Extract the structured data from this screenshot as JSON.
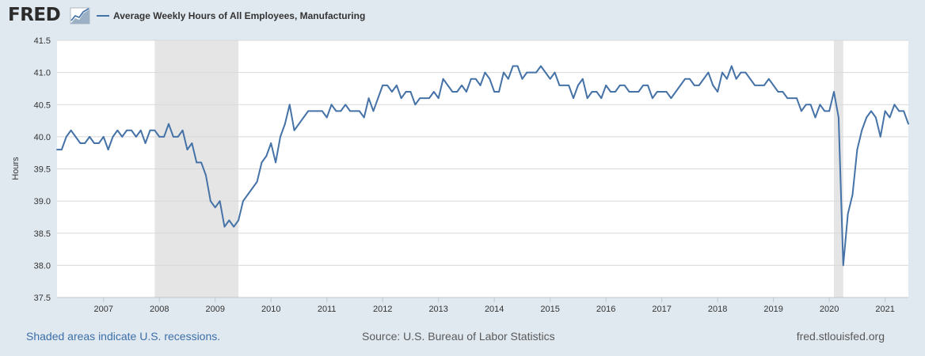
{
  "header": {
    "logo_text": "FRED",
    "logo_icon": "line-chart-icon",
    "legend_label": "Average Weekly Hours of All Employees, Manufacturing"
  },
  "footer": {
    "recession_note": "Shaded areas indicate U.S. recessions.",
    "source": "Source: U.S. Bureau of Labor Statistics",
    "site": "fred.stlouisfed.org"
  },
  "colors": {
    "series": "#4572a7",
    "recession_shade": "#e5e5e5",
    "background": "#e1e9f0",
    "plot_background": "#ffffff",
    "gridline": "#d8d8d8"
  },
  "chart_data": {
    "type": "line",
    "title": "",
    "xlabel": "",
    "ylabel": "Hours",
    "ylim": [
      37.5,
      41.5
    ],
    "xlim": [
      "2006-03",
      "2021-06"
    ],
    "y_ticks": [
      "37.5",
      "38.0",
      "38.5",
      "39.0",
      "39.5",
      "40.0",
      "40.5",
      "41.0",
      "41.5"
    ],
    "x_ticks": [
      "2007",
      "2008",
      "2009",
      "2010",
      "2011",
      "2012",
      "2013",
      "2014",
      "2015",
      "2016",
      "2017",
      "2018",
      "2019",
      "2020",
      "2021"
    ],
    "grid": "horizontal",
    "legend": "top-left",
    "recessions": [
      {
        "start": "2007-12",
        "end": "2009-06"
      },
      {
        "start": "2020-02",
        "end": "2020-04"
      }
    ],
    "series": [
      {
        "name": "Average Weekly Hours of All Employees, Manufacturing",
        "start": "2006-03",
        "frequency": "monthly",
        "values": [
          39.8,
          39.8,
          40.0,
          40.1,
          40.0,
          39.9,
          39.9,
          40.0,
          39.9,
          39.9,
          40.0,
          39.8,
          40.0,
          40.1,
          40.0,
          40.1,
          40.1,
          40.0,
          40.1,
          39.9,
          40.1,
          40.1,
          40.0,
          40.0,
          40.2,
          40.0,
          40.0,
          40.1,
          39.8,
          39.9,
          39.6,
          39.6,
          39.4,
          39.0,
          38.9,
          39.0,
          38.6,
          38.7,
          38.6,
          38.7,
          39.0,
          39.1,
          39.2,
          39.3,
          39.6,
          39.7,
          39.9,
          39.6,
          40.0,
          40.2,
          40.5,
          40.1,
          40.2,
          40.3,
          40.4,
          40.4,
          40.4,
          40.4,
          40.3,
          40.5,
          40.4,
          40.4,
          40.5,
          40.4,
          40.4,
          40.4,
          40.3,
          40.6,
          40.4,
          40.6,
          40.8,
          40.8,
          40.7,
          40.8,
          40.6,
          40.7,
          40.7,
          40.5,
          40.6,
          40.6,
          40.6,
          40.7,
          40.6,
          40.9,
          40.8,
          40.7,
          40.7,
          40.8,
          40.7,
          40.9,
          40.9,
          40.8,
          41.0,
          40.9,
          40.7,
          40.7,
          41.0,
          40.9,
          41.1,
          41.1,
          40.9,
          41.0,
          41.0,
          41.0,
          41.1,
          41.0,
          40.9,
          41.0,
          40.8,
          40.8,
          40.8,
          40.6,
          40.8,
          40.9,
          40.6,
          40.7,
          40.7,
          40.6,
          40.8,
          40.7,
          40.7,
          40.8,
          40.8,
          40.7,
          40.7,
          40.7,
          40.8,
          40.8,
          40.6,
          40.7,
          40.7,
          40.7,
          40.6,
          40.7,
          40.8,
          40.9,
          40.9,
          40.8,
          40.8,
          40.9,
          41.0,
          40.8,
          40.7,
          41.0,
          40.9,
          41.1,
          40.9,
          41.0,
          41.0,
          40.9,
          40.8,
          40.8,
          40.8,
          40.9,
          40.8,
          40.7,
          40.7,
          40.6,
          40.6,
          40.6,
          40.4,
          40.5,
          40.5,
          40.3,
          40.5,
          40.4,
          40.4,
          40.7,
          40.3,
          38.0,
          38.8,
          39.1,
          39.8,
          40.1,
          40.3,
          40.4,
          40.3,
          40.0,
          40.4,
          40.3,
          40.5,
          40.4,
          40.4,
          40.2
        ]
      }
    ]
  }
}
